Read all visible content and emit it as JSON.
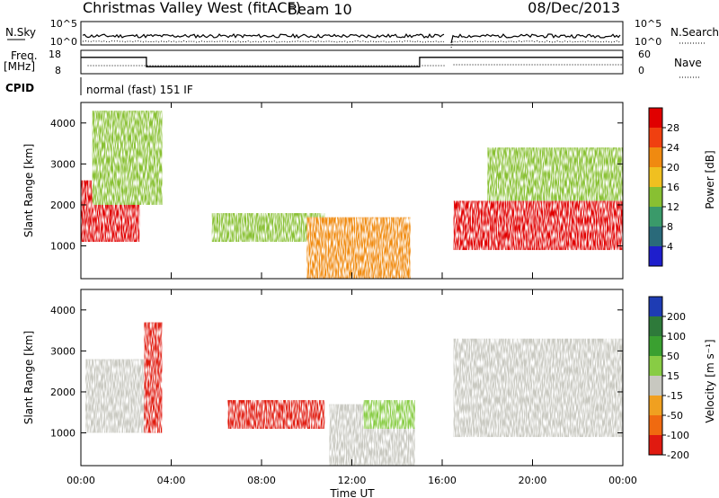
{
  "header": {
    "title": "Christmas Valley West (fitACF)",
    "beam": "Beam 10",
    "date": "08/Dec/2013"
  },
  "sky_panel": {
    "left_label": "N.Sky",
    "left_ticks": [
      "10^5",
      "10^0"
    ],
    "right_label": "N.Search",
    "right_ticks": [
      "10^5",
      "10^0"
    ]
  },
  "freq_panel": {
    "left_label": "Freq.",
    "left_unit": "[MHz]",
    "left_ticks": [
      "18",
      "8"
    ],
    "right_label": "Nave",
    "right_ticks": [
      "60",
      "0"
    ]
  },
  "cpid": {
    "label": "CPID",
    "mode": "normal (fast) 151 IF"
  },
  "x_axis": {
    "label": "Time UT",
    "ticks": [
      "00:00",
      "04:00",
      "08:00",
      "12:00",
      "16:00",
      "20:00",
      "00:00"
    ]
  },
  "power_panel": {
    "ylabel": "Slant Range [km]",
    "yticks": [
      "1000",
      "2000",
      "3000",
      "4000"
    ],
    "colorbar_label": "Power [dB]",
    "colorbar_ticks": [
      "4",
      "8",
      "12",
      "16",
      "20",
      "24",
      "28"
    ],
    "colors": [
      "#1e1ecc",
      "#2a6a7a",
      "#3a9a6a",
      "#88c032",
      "#f0c020",
      "#f08a10",
      "#f04010",
      "#e00000"
    ]
  },
  "velocity_panel": {
    "ylabel": "Slant Range [km]",
    "yticks": [
      "1000",
      "2000",
      "3000",
      "4000"
    ],
    "colorbar_label": "Velocity [m s⁻¹]",
    "colorbar_ticks": [
      "200",
      "100",
      "50",
      "15",
      "-15",
      "-50",
      "-100",
      "-200"
    ],
    "colors": [
      "#1e3cb4",
      "#2e7a3a",
      "#3aa030",
      "#88cc44",
      "#c8c8c0",
      "#f0a020",
      "#f06a10",
      "#e01a10"
    ]
  },
  "chart_data": [
    {
      "type": "heatmap",
      "title": "",
      "xlabel": "Time UT",
      "ylabel": "Slant Range [km]",
      "xlim": [
        0,
        24
      ],
      "ylim": [
        200,
        4500
      ],
      "legend": "colorbar-right",
      "colorbar_label": "Power [dB]",
      "regions": [
        {
          "t_start": 0.0,
          "t_end": 2.6,
          "range_min": 1100,
          "range_max": 2600,
          "power": 28
        },
        {
          "t_start": 0.5,
          "t_end": 3.6,
          "range_min": 2000,
          "range_max": 4300,
          "power": 12
        },
        {
          "t_start": 5.8,
          "t_end": 10.8,
          "range_min": 1100,
          "range_max": 1800,
          "power": 12
        },
        {
          "t_start": 10.0,
          "t_end": 14.6,
          "range_min": 200,
          "range_max": 1700,
          "power": 20
        },
        {
          "t_start": 16.5,
          "t_end": 24.0,
          "range_min": 900,
          "range_max": 2100,
          "power": 28
        },
        {
          "t_start": 18.0,
          "t_end": 24.0,
          "range_min": 2100,
          "range_max": 3400,
          "power": 14
        }
      ]
    },
    {
      "type": "heatmap",
      "title": "",
      "xlabel": "Time UT",
      "ylabel": "Slant Range [km]",
      "xlim": [
        0,
        24
      ],
      "ylim": [
        200,
        4500
      ],
      "legend": "colorbar-right",
      "colorbar_label": "Velocity [m s⁻¹]",
      "regions": [
        {
          "t_start": 0.2,
          "t_end": 3.4,
          "range_min": 1000,
          "range_max": 2800,
          "velocity": 0
        },
        {
          "t_start": 2.8,
          "t_end": 3.6,
          "range_min": 1000,
          "range_max": 3700,
          "velocity": -200
        },
        {
          "t_start": 6.5,
          "t_end": 10.8,
          "range_min": 1100,
          "range_max": 1800,
          "velocity": -200
        },
        {
          "t_start": 11.0,
          "t_end": 14.8,
          "range_min": 200,
          "range_max": 1700,
          "velocity": 0
        },
        {
          "t_start": 12.5,
          "t_end": 14.8,
          "range_min": 1100,
          "range_max": 1800,
          "velocity": 50
        },
        {
          "t_start": 16.5,
          "t_end": 24.0,
          "range_min": 900,
          "range_max": 3300,
          "velocity": 0
        }
      ]
    },
    {
      "type": "line",
      "title": "",
      "xlabel": "Time UT",
      "ylabel": "Freq. [MHz]",
      "xlim": [
        0,
        24
      ],
      "ylim": [
        8,
        18
      ],
      "series": [
        {
          "name": "",
          "x": [
            0,
            2.9,
            2.9,
            15.0,
            15.0,
            16.2,
            16.4,
            24
          ],
          "values": [
            15,
            15,
            11,
            11,
            15,
            15,
            15,
            15
          ]
        }
      ]
    }
  ]
}
